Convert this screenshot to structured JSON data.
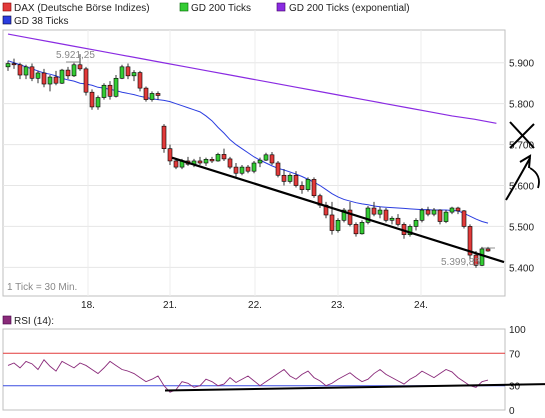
{
  "chart_data": {
    "type": "candlestick",
    "legend": [
      {
        "label": "DAX (Deutsche Börse Indizes)",
        "color": "#e23a3a"
      },
      {
        "label": "GD 200 Ticks",
        "color": "#33cc33"
      },
      {
        "label": "GD 200 Ticks (exponential)",
        "color": "#8a2be2"
      },
      {
        "label": "GD 38 Ticks",
        "color": "#2b3de0"
      }
    ],
    "x_ticks": [
      "18.",
      "21.",
      "22.",
      "23.",
      "24."
    ],
    "y_ticks": [
      "5.900",
      "5.800",
      "5.700",
      "5.600",
      "5.500",
      "5.400"
    ],
    "ylim": [
      5330,
      5980
    ],
    "annotations": {
      "high_label": "5.921,25",
      "low_label": "5.399,85",
      "tick_info": "1 Tick = 30 Min."
    },
    "colors": {
      "up": "#33cc33",
      "down": "#e23a3a",
      "gd38": "#2b3de0",
      "gd200exp": "#8a2be2",
      "trendline": "#000000",
      "rsi": "#8a2b7a",
      "rsi_band": "#e23a3a"
    },
    "candles": [
      [
        5890,
        5905,
        5880,
        5898
      ],
      [
        5898,
        5910,
        5885,
        5895
      ],
      [
        5895,
        5900,
        5860,
        5870
      ],
      [
        5870,
        5895,
        5860,
        5890
      ],
      [
        5890,
        5898,
        5855,
        5862
      ],
      [
        5862,
        5880,
        5850,
        5875
      ],
      [
        5875,
        5885,
        5840,
        5848
      ],
      [
        5848,
        5870,
        5830,
        5865
      ],
      [
        5865,
        5880,
        5845,
        5850
      ],
      [
        5850,
        5885,
        5848,
        5882
      ],
      [
        5882,
        5890,
        5860,
        5868
      ],
      [
        5868,
        5900,
        5865,
        5895
      ],
      [
        5895,
        5921,
        5880,
        5885
      ],
      [
        5885,
        5890,
        5820,
        5828
      ],
      [
        5828,
        5835,
        5785,
        5792
      ],
      [
        5792,
        5820,
        5785,
        5815
      ],
      [
        5815,
        5850,
        5810,
        5845
      ],
      [
        5845,
        5855,
        5810,
        5818
      ],
      [
        5818,
        5870,
        5815,
        5862
      ],
      [
        5862,
        5895,
        5860,
        5890
      ],
      [
        5890,
        5898,
        5860,
        5868
      ],
      [
        5868,
        5882,
        5855,
        5876
      ],
      [
        5876,
        5880,
        5830,
        5838
      ],
      [
        5838,
        5842,
        5805,
        5810
      ],
      [
        5810,
        5830,
        5805,
        5825
      ],
      [
        5825,
        5830,
        5810,
        5820
      ],
      [
        5745,
        5750,
        5680,
        5690
      ],
      [
        5690,
        5700,
        5650,
        5660
      ],
      [
        5660,
        5665,
        5640,
        5645
      ],
      [
        5645,
        5665,
        5640,
        5660
      ],
      [
        5660,
        5670,
        5648,
        5652
      ],
      [
        5652,
        5665,
        5645,
        5660
      ],
      [
        5660,
        5670,
        5650,
        5655
      ],
      [
        5655,
        5668,
        5648,
        5664
      ],
      [
        5664,
        5670,
        5655,
        5660
      ],
      [
        5660,
        5680,
        5658,
        5676
      ],
      [
        5676,
        5690,
        5660,
        5665
      ],
      [
        5665,
        5670,
        5640,
        5645
      ],
      [
        5645,
        5655,
        5620,
        5630
      ],
      [
        5630,
        5650,
        5625,
        5645
      ],
      [
        5645,
        5650,
        5630,
        5635
      ],
      [
        5635,
        5660,
        5630,
        5655
      ],
      [
        5655,
        5668,
        5645,
        5662
      ],
      [
        5662,
        5680,
        5660,
        5675
      ],
      [
        5675,
        5682,
        5650,
        5655
      ],
      [
        5655,
        5660,
        5620,
        5625
      ],
      [
        5625,
        5640,
        5600,
        5610
      ],
      [
        5610,
        5630,
        5605,
        5625
      ],
      [
        5625,
        5635,
        5595,
        5600
      ],
      [
        5600,
        5610,
        5580,
        5590
      ],
      [
        5590,
        5620,
        5585,
        5615
      ],
      [
        5615,
        5620,
        5570,
        5575
      ],
      [
        5575,
        5580,
        5545,
        5552
      ],
      [
        5552,
        5560,
        5520,
        5528
      ],
      [
        5528,
        5560,
        5480,
        5490
      ],
      [
        5490,
        5520,
        5485,
        5515
      ],
      [
        5515,
        5545,
        5510,
        5540
      ],
      [
        5540,
        5560,
        5500,
        5505
      ],
      [
        5505,
        5510,
        5475,
        5482
      ],
      [
        5482,
        5515,
        5480,
        5510
      ],
      [
        5510,
        5550,
        5505,
        5545
      ],
      [
        5545,
        5560,
        5525,
        5530
      ],
      [
        5530,
        5548,
        5520,
        5540
      ],
      [
        5540,
        5545,
        5510,
        5515
      ],
      [
        5515,
        5525,
        5505,
        5520
      ],
      [
        5520,
        5530,
        5500,
        5505
      ],
      [
        5505,
        5510,
        5470,
        5480
      ],
      [
        5480,
        5505,
        5475,
        5500
      ],
      [
        5500,
        5520,
        5490,
        5515
      ],
      [
        5515,
        5545,
        5510,
        5540
      ],
      [
        5540,
        5548,
        5525,
        5530
      ],
      [
        5530,
        5545,
        5525,
        5540
      ],
      [
        5540,
        5542,
        5505,
        5512
      ],
      [
        5512,
        5540,
        5508,
        5535
      ],
      [
        5535,
        5548,
        5530,
        5545
      ],
      [
        5545,
        5548,
        5530,
        5538
      ],
      [
        5538,
        5540,
        5495,
        5500
      ],
      [
        5500,
        5505,
        5420,
        5430
      ],
      [
        5430,
        5440,
        5399,
        5405
      ],
      [
        5405,
        5450,
        5403,
        5445
      ],
      [
        5445,
        5450,
        5438,
        5440
      ]
    ],
    "gd38": [
      5905,
      5900,
      5895,
      5890,
      5885,
      5880,
      5875,
      5872,
      5868,
      5862,
      5858,
      5855,
      5850,
      5848,
      5845,
      5840,
      5838,
      5835,
      5832,
      5828,
      5825,
      5822,
      5818,
      5815,
      5812,
      5810,
      5808,
      5805,
      5800,
      5795,
      5790,
      5785,
      5780,
      5770,
      5758,
      5742,
      5728,
      5712,
      5700,
      5690,
      5680,
      5670,
      5662,
      5655,
      5648,
      5642,
      5638,
      5633,
      5628,
      5622,
      5615,
      5608,
      5600,
      5590,
      5580,
      5572,
      5566,
      5562,
      5558,
      5555,
      5553,
      5550,
      5548,
      5547,
      5546,
      5545,
      5544,
      5543,
      5542,
      5541,
      5541,
      5540,
      5540,
      5540,
      5539,
      5538,
      5532,
      5525,
      5518,
      5512,
      5508
    ],
    "gd200exp": [
      5970,
      5960,
      5950,
      5940,
      5930,
      5920,
      5910,
      5900,
      5890,
      5880,
      5870,
      5860,
      5850,
      5840,
      5830,
      5820,
      5810,
      5800,
      5790,
      5780,
      5770,
      5762,
      5752
    ],
    "trendline": {
      "from": [
        28,
        5668
      ],
      "to": [
        80,
        5408
      ]
    },
    "rsi": {
      "label": "RSI (14):",
      "y_ticks": [
        "100",
        "70",
        "30",
        "0"
      ],
      "band_level": 70,
      "lower_level": 30,
      "values": [
        55,
        58,
        52,
        60,
        57,
        50,
        62,
        54,
        48,
        60,
        56,
        52,
        58,
        55,
        50,
        45,
        52,
        60,
        55,
        50,
        48,
        45,
        40,
        35,
        38,
        42,
        30,
        22,
        25,
        35,
        33,
        28,
        30,
        38,
        35,
        30,
        32,
        40,
        34,
        38,
        42,
        36,
        30,
        35,
        40,
        45,
        50,
        42,
        38,
        44,
        48,
        40,
        36,
        30,
        33,
        38,
        42,
        46,
        40,
        35,
        38,
        45,
        50,
        44,
        40,
        36,
        32,
        38,
        42,
        48,
        44,
        40,
        45,
        50,
        47,
        40,
        35,
        30,
        28,
        35,
        37
      ],
      "support_line": {
        "from": [
          27,
          24
        ],
        "to": [
          80,
          32
        ]
      }
    }
  }
}
